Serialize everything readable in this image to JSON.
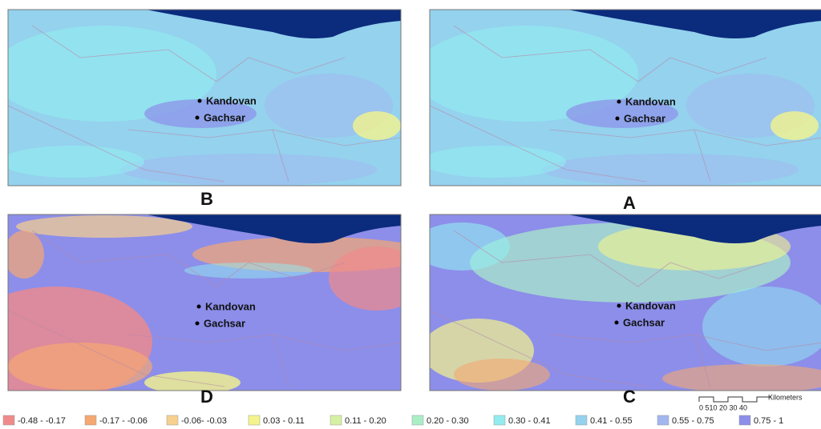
{
  "panels": [
    {
      "letter": "B",
      "places": [
        "Kandovan",
        "Gachsar"
      ]
    },
    {
      "letter": "A",
      "places": [
        "Kandovan",
        "Gachsar"
      ]
    },
    {
      "letter": "D",
      "places": [
        "Kandovan",
        "Gachsar"
      ]
    },
    {
      "letter": "C",
      "places": [
        "Kandovan",
        "Gachsar"
      ]
    }
  ],
  "legend": [
    {
      "label": "-0.48 - -0.17",
      "color": "#f08a8a"
    },
    {
      "label": "-0.17 - -0.06",
      "color": "#f5a872"
    },
    {
      "label": "-0.06- -0.03",
      "color": "#f6d08e"
    },
    {
      "label": "0.03 - 0.11",
      "color": "#f4f48c"
    },
    {
      "label": "0.11 - 0.20",
      "color": "#d6f0a4"
    },
    {
      "label": "0.20 - 0.30",
      "color": "#aaeec8"
    },
    {
      "label": "0.30 - 0.41",
      "color": "#92ecf0"
    },
    {
      "label": "0.41 - 0.55",
      "color": "#94d2ee"
    },
    {
      "label": "0.55 - 0.75",
      "color": "#a2b6f0"
    },
    {
      "label": "0.75 - 1",
      "color": "#8c8eea"
    }
  ],
  "scale": {
    "ticks": "0 510 20 30 40",
    "unit": "Kilometers"
  }
}
